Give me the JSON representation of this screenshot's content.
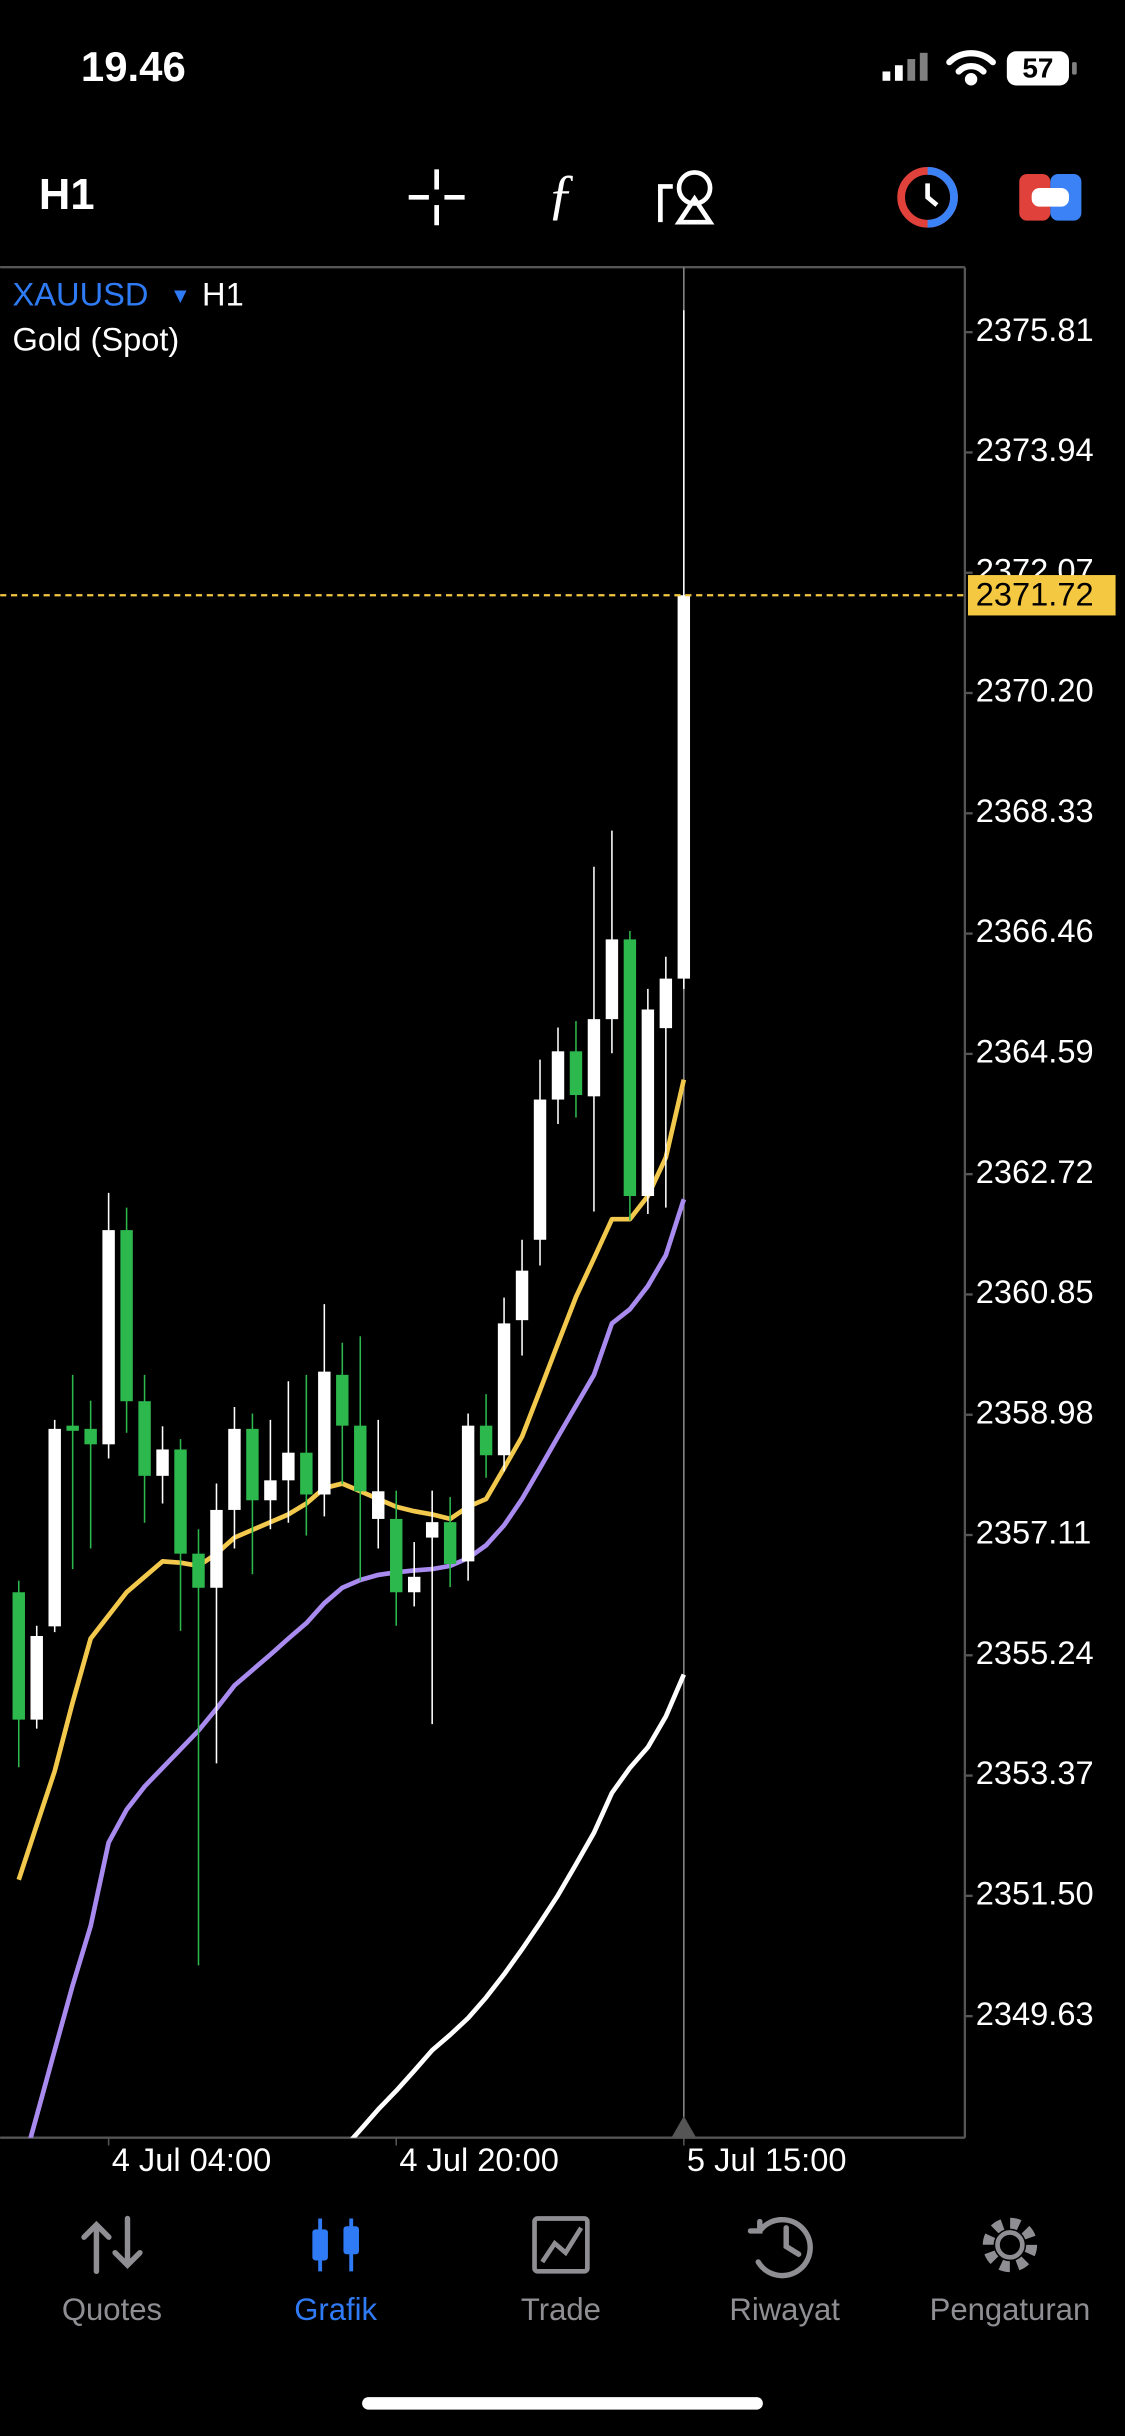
{
  "status_bar": {
    "time": "19.46",
    "battery": 57
  },
  "toolbar": {
    "timeframe": "H1"
  },
  "chart_data": {
    "type": "candlestick",
    "symbol": "XAUUSD",
    "timeframe": "H1",
    "description": "Gold (Spot)",
    "categories": [
      null,
      null,
      null,
      null,
      null,
      "4 Jul 04:00",
      null,
      null,
      null,
      null,
      null,
      null,
      null,
      null,
      null,
      null,
      null,
      null,
      null,
      null,
      null,
      "4 Jul 20:00",
      null,
      null,
      null,
      null,
      null,
      null,
      null,
      null,
      null,
      null,
      null,
      null,
      null,
      null,
      null,
      "5 Jul 15:00"
    ],
    "open": [
      2356.22,
      2354.24,
      2355.69,
      2358.81,
      2358.76,
      2358.52,
      2361.85,
      2359.19,
      2358.03,
      2358.44,
      2356.82,
      2356.29,
      2357.5,
      2358.76,
      2357.65,
      2357.96,
      2358.39,
      2357.74,
      2359.6,
      2358.81,
      2357.36,
      2357.36,
      2356.22,
      2357.07,
      2357.31,
      2356.7,
      2358.81,
      2358.35,
      2360.45,
      2361.7,
      2363.88,
      2364.63,
      2363.93,
      2365.13,
      2366.37,
      2362.38,
      2364.99,
      2365.76
    ],
    "high": [
      2356.4,
      2355.7,
      2358.9,
      2359.6,
      2359.2,
      2362.43,
      2362.2,
      2359.6,
      2358.8,
      2358.6,
      2357.2,
      2357.91,
      2359.1,
      2359.0,
      2358.9,
      2359.5,
      2359.6,
      2360.7,
      2360.1,
      2360.2,
      2358.9,
      2357.8,
      2357.0,
      2357.8,
      2357.7,
      2359.0,
      2359.3,
      2360.8,
      2361.7,
      2364.5,
      2365.0,
      2365.1,
      2367.5,
      2368.06,
      2366.5,
      2365.6,
      2366.1,
      2376.15
    ],
    "low": [
      2353.5,
      2354.1,
      2355.6,
      2356.58,
      2356.9,
      2358.3,
      2358.7,
      2357.3,
      2357.6,
      2355.62,
      2350.42,
      2353.56,
      2356.9,
      2356.5,
      2357.2,
      2357.3,
      2357.1,
      2357.4,
      2357.9,
      2356.4,
      2356.9,
      2355.7,
      2356.0,
      2354.17,
      2356.3,
      2356.4,
      2358.0,
      2358.1,
      2359.9,
      2361.3,
      2363.5,
      2363.6,
      2362.14,
      2364.6,
      2362.0,
      2362.1,
      2362.2,
      2365.6
    ],
    "close": [
      2354.24,
      2355.54,
      2358.76,
      2358.73,
      2358.52,
      2361.85,
      2359.19,
      2358.03,
      2358.44,
      2356.82,
      2356.29,
      2357.5,
      2358.76,
      2357.65,
      2357.96,
      2358.39,
      2357.74,
      2359.65,
      2358.81,
      2357.79,
      2357.79,
      2356.22,
      2356.46,
      2357.31,
      2356.66,
      2358.81,
      2358.35,
      2360.4,
      2361.22,
      2363.88,
      2364.63,
      2363.95,
      2365.13,
      2366.37,
      2362.38,
      2365.28,
      2365.76,
      2371.72
    ],
    "up_color": "#ffffff",
    "down_color": "#2db84d",
    "series": [
      {
        "color": "#f2c94c",
        "values": [
          2351.75,
          2352.6,
          2353.44,
          2354.51,
          2355.5,
          2355.86,
          2356.22,
          2356.46,
          2356.7,
          2356.68,
          2356.63,
          2356.82,
          2357.07,
          2357.19,
          2357.31,
          2357.43,
          2357.6,
          2357.84,
          2357.91,
          2357.79,
          2357.67,
          2357.55,
          2357.48,
          2357.43,
          2357.36,
          2357.55,
          2357.67,
          2358.15,
          2358.64,
          2359.36,
          2360.09,
          2360.81,
          2361.41,
          2362.02,
          2362.02,
          2362.38,
          2362.98,
          2364.19
        ]
      },
      {
        "color": "#a98bf0",
        "values": [
          2347.07,
          2348.08,
          2349.1,
          2350.11,
          2351.03,
          2352.33,
          2352.84,
          2353.2,
          2353.49,
          2353.78,
          2354.07,
          2354.41,
          2354.77,
          2355.01,
          2355.25,
          2355.5,
          2355.74,
          2356.05,
          2356.29,
          2356.41,
          2356.49,
          2356.53,
          2356.56,
          2356.58,
          2356.63,
          2356.75,
          2356.95,
          2357.26,
          2357.67,
          2358.15,
          2358.64,
          2359.12,
          2359.6,
          2360.4,
          2360.62,
          2360.98,
          2361.46,
          2362.33
        ]
      },
      {
        "color": "#ffffff",
        "values": [
          null,
          null,
          null,
          null,
          null,
          null,
          null,
          null,
          null,
          null,
          null,
          null,
          null,
          null,
          null,
          null,
          null,
          null,
          2347.55,
          2347.86,
          2348.18,
          2348.47,
          2348.78,
          2349.1,
          2349.34,
          2349.6,
          2349.92,
          2350.28,
          2350.67,
          2351.08,
          2351.51,
          2351.99,
          2352.48,
          2353.1,
          2353.49,
          2353.81,
          2354.29,
          2354.94
        ]
      }
    ],
    "current_price": 2371.72,
    "current_price_color": "#f5c842",
    "ylim": [
      2347.74,
      2376.82
    ],
    "yticks": [
      2375.81,
      2373.94,
      2372.07,
      {
        "value": 2370.2,
        "label": "2370.20"
      },
      2368.33,
      2366.46,
      2364.59,
      2362.72,
      2360.85,
      2358.98,
      2357.11,
      2355.24,
      2353.37,
      {
        "value": 2351.5,
        "label": "2351.50"
      },
      2349.63
    ]
  },
  "tab_bar": {
    "tabs": [
      {
        "label": "Quotes"
      },
      {
        "label": "Grafik"
      },
      {
        "label": "Trade"
      },
      {
        "label": "Riwayat"
      },
      {
        "label": "Pengaturan"
      }
    ],
    "active": 1,
    "active_color": "#2f7bf5",
    "color": "#8e8e93"
  }
}
